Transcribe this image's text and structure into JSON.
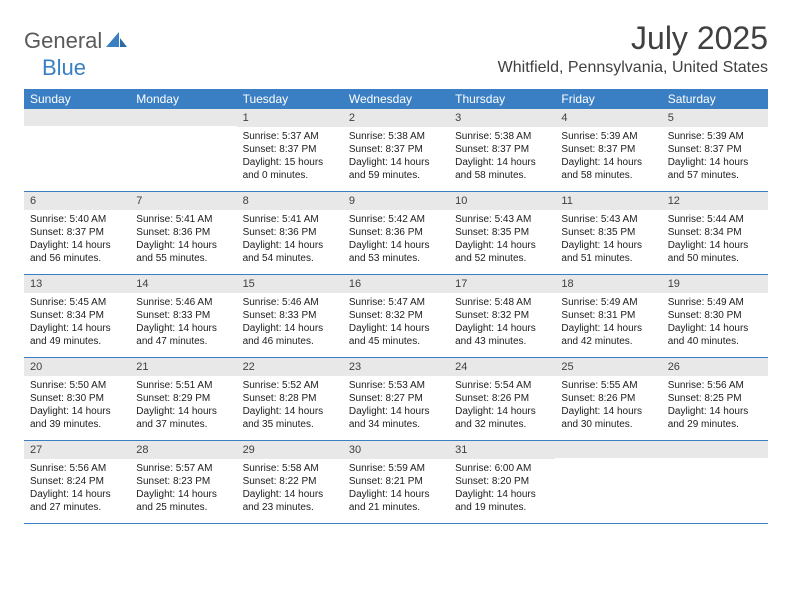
{
  "logo": {
    "part1": "General",
    "part2": "Blue"
  },
  "title": "July 2025",
  "location": "Whitfield, Pennsylvania, United States",
  "colors": {
    "header_bg": "#3a7fc4",
    "header_text": "#ffffff",
    "daynum_bg": "#e8e8e8",
    "border": "#3a7fc4",
    "logo_gray": "#5a5a5a",
    "logo_blue": "#3a7fc4",
    "text": "#202020"
  },
  "weekdays": [
    "Sunday",
    "Monday",
    "Tuesday",
    "Wednesday",
    "Thursday",
    "Friday",
    "Saturday"
  ],
  "weeks": [
    [
      null,
      null,
      {
        "n": "1",
        "sr": "Sunrise: 5:37 AM",
        "ss": "Sunset: 8:37 PM",
        "d1": "Daylight: 15 hours",
        "d2": "and 0 minutes."
      },
      {
        "n": "2",
        "sr": "Sunrise: 5:38 AM",
        "ss": "Sunset: 8:37 PM",
        "d1": "Daylight: 14 hours",
        "d2": "and 59 minutes."
      },
      {
        "n": "3",
        "sr": "Sunrise: 5:38 AM",
        "ss": "Sunset: 8:37 PM",
        "d1": "Daylight: 14 hours",
        "d2": "and 58 minutes."
      },
      {
        "n": "4",
        "sr": "Sunrise: 5:39 AM",
        "ss": "Sunset: 8:37 PM",
        "d1": "Daylight: 14 hours",
        "d2": "and 58 minutes."
      },
      {
        "n": "5",
        "sr": "Sunrise: 5:39 AM",
        "ss": "Sunset: 8:37 PM",
        "d1": "Daylight: 14 hours",
        "d2": "and 57 minutes."
      }
    ],
    [
      {
        "n": "6",
        "sr": "Sunrise: 5:40 AM",
        "ss": "Sunset: 8:37 PM",
        "d1": "Daylight: 14 hours",
        "d2": "and 56 minutes."
      },
      {
        "n": "7",
        "sr": "Sunrise: 5:41 AM",
        "ss": "Sunset: 8:36 PM",
        "d1": "Daylight: 14 hours",
        "d2": "and 55 minutes."
      },
      {
        "n": "8",
        "sr": "Sunrise: 5:41 AM",
        "ss": "Sunset: 8:36 PM",
        "d1": "Daylight: 14 hours",
        "d2": "and 54 minutes."
      },
      {
        "n": "9",
        "sr": "Sunrise: 5:42 AM",
        "ss": "Sunset: 8:36 PM",
        "d1": "Daylight: 14 hours",
        "d2": "and 53 minutes."
      },
      {
        "n": "10",
        "sr": "Sunrise: 5:43 AM",
        "ss": "Sunset: 8:35 PM",
        "d1": "Daylight: 14 hours",
        "d2": "and 52 minutes."
      },
      {
        "n": "11",
        "sr": "Sunrise: 5:43 AM",
        "ss": "Sunset: 8:35 PM",
        "d1": "Daylight: 14 hours",
        "d2": "and 51 minutes."
      },
      {
        "n": "12",
        "sr": "Sunrise: 5:44 AM",
        "ss": "Sunset: 8:34 PM",
        "d1": "Daylight: 14 hours",
        "d2": "and 50 minutes."
      }
    ],
    [
      {
        "n": "13",
        "sr": "Sunrise: 5:45 AM",
        "ss": "Sunset: 8:34 PM",
        "d1": "Daylight: 14 hours",
        "d2": "and 49 minutes."
      },
      {
        "n": "14",
        "sr": "Sunrise: 5:46 AM",
        "ss": "Sunset: 8:33 PM",
        "d1": "Daylight: 14 hours",
        "d2": "and 47 minutes."
      },
      {
        "n": "15",
        "sr": "Sunrise: 5:46 AM",
        "ss": "Sunset: 8:33 PM",
        "d1": "Daylight: 14 hours",
        "d2": "and 46 minutes."
      },
      {
        "n": "16",
        "sr": "Sunrise: 5:47 AM",
        "ss": "Sunset: 8:32 PM",
        "d1": "Daylight: 14 hours",
        "d2": "and 45 minutes."
      },
      {
        "n": "17",
        "sr": "Sunrise: 5:48 AM",
        "ss": "Sunset: 8:32 PM",
        "d1": "Daylight: 14 hours",
        "d2": "and 43 minutes."
      },
      {
        "n": "18",
        "sr": "Sunrise: 5:49 AM",
        "ss": "Sunset: 8:31 PM",
        "d1": "Daylight: 14 hours",
        "d2": "and 42 minutes."
      },
      {
        "n": "19",
        "sr": "Sunrise: 5:49 AM",
        "ss": "Sunset: 8:30 PM",
        "d1": "Daylight: 14 hours",
        "d2": "and 40 minutes."
      }
    ],
    [
      {
        "n": "20",
        "sr": "Sunrise: 5:50 AM",
        "ss": "Sunset: 8:30 PM",
        "d1": "Daylight: 14 hours",
        "d2": "and 39 minutes."
      },
      {
        "n": "21",
        "sr": "Sunrise: 5:51 AM",
        "ss": "Sunset: 8:29 PM",
        "d1": "Daylight: 14 hours",
        "d2": "and 37 minutes."
      },
      {
        "n": "22",
        "sr": "Sunrise: 5:52 AM",
        "ss": "Sunset: 8:28 PM",
        "d1": "Daylight: 14 hours",
        "d2": "and 35 minutes."
      },
      {
        "n": "23",
        "sr": "Sunrise: 5:53 AM",
        "ss": "Sunset: 8:27 PM",
        "d1": "Daylight: 14 hours",
        "d2": "and 34 minutes."
      },
      {
        "n": "24",
        "sr": "Sunrise: 5:54 AM",
        "ss": "Sunset: 8:26 PM",
        "d1": "Daylight: 14 hours",
        "d2": "and 32 minutes."
      },
      {
        "n": "25",
        "sr": "Sunrise: 5:55 AM",
        "ss": "Sunset: 8:26 PM",
        "d1": "Daylight: 14 hours",
        "d2": "and 30 minutes."
      },
      {
        "n": "26",
        "sr": "Sunrise: 5:56 AM",
        "ss": "Sunset: 8:25 PM",
        "d1": "Daylight: 14 hours",
        "d2": "and 29 minutes."
      }
    ],
    [
      {
        "n": "27",
        "sr": "Sunrise: 5:56 AM",
        "ss": "Sunset: 8:24 PM",
        "d1": "Daylight: 14 hours",
        "d2": "and 27 minutes."
      },
      {
        "n": "28",
        "sr": "Sunrise: 5:57 AM",
        "ss": "Sunset: 8:23 PM",
        "d1": "Daylight: 14 hours",
        "d2": "and 25 minutes."
      },
      {
        "n": "29",
        "sr": "Sunrise: 5:58 AM",
        "ss": "Sunset: 8:22 PM",
        "d1": "Daylight: 14 hours",
        "d2": "and 23 minutes."
      },
      {
        "n": "30",
        "sr": "Sunrise: 5:59 AM",
        "ss": "Sunset: 8:21 PM",
        "d1": "Daylight: 14 hours",
        "d2": "and 21 minutes."
      },
      {
        "n": "31",
        "sr": "Sunrise: 6:00 AM",
        "ss": "Sunset: 8:20 PM",
        "d1": "Daylight: 14 hours",
        "d2": "and 19 minutes."
      },
      null,
      null
    ]
  ]
}
